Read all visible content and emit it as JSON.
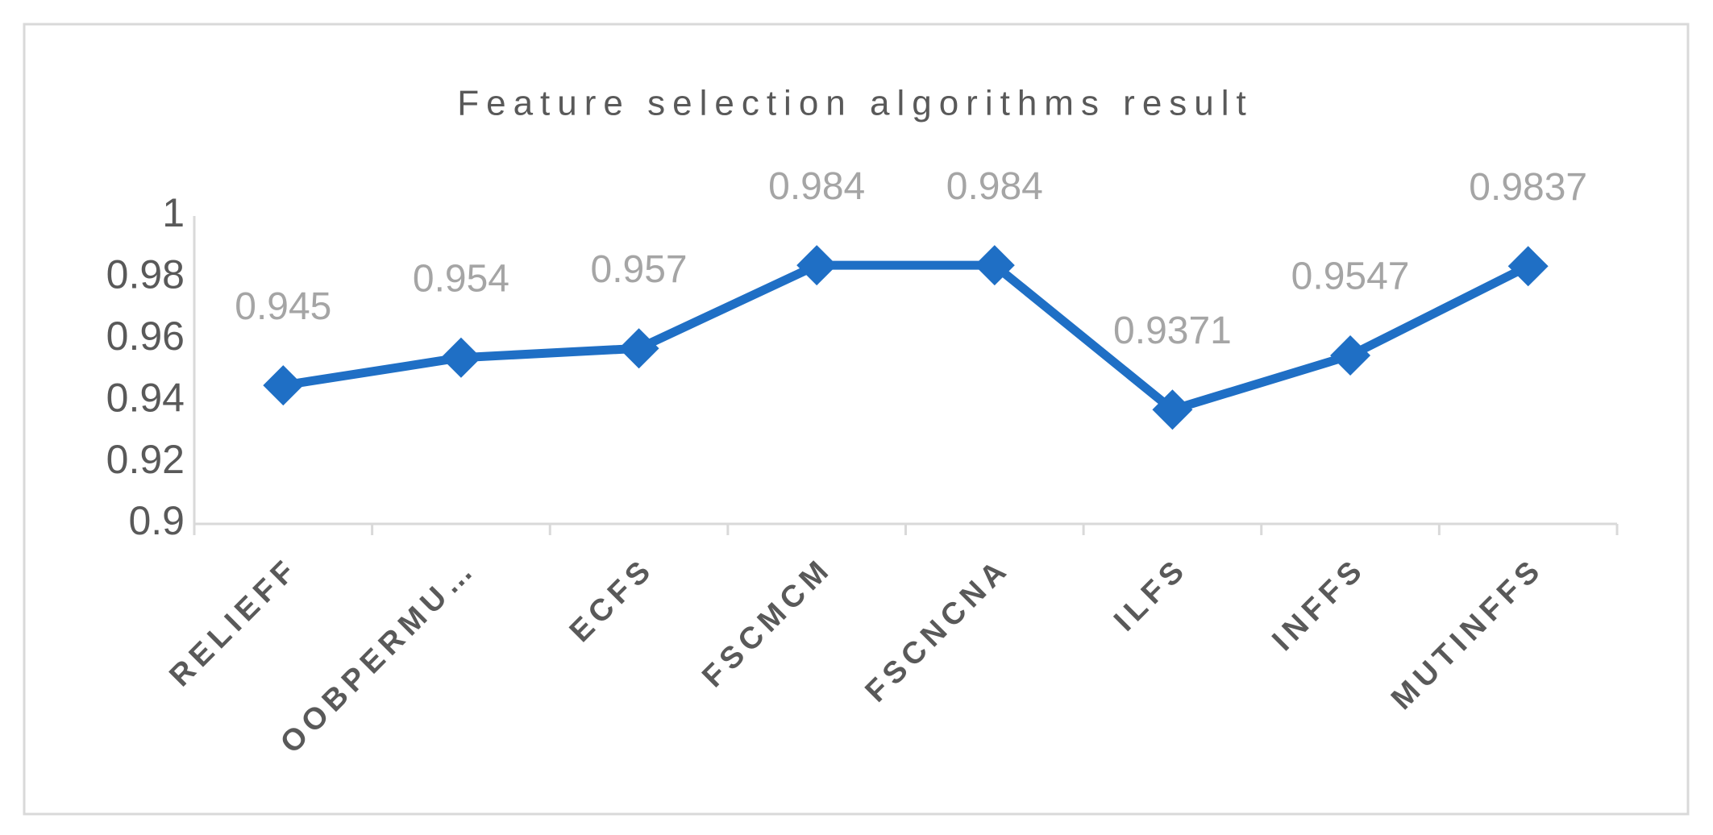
{
  "chart_data": {
    "type": "line",
    "title": "Feature selection algorithms result",
    "categories": [
      "RELIEFF",
      "OOBPERMU…",
      "ECFS",
      "FSCMCM",
      "FSCNCNA",
      "ILFS",
      "INFFS",
      "MUTINFFS"
    ],
    "values": [
      0.945,
      0.954,
      0.957,
      0.984,
      0.984,
      0.9371,
      0.9547,
      0.9837
    ],
    "color": "#1f6fc5",
    "ylim": [
      0.9,
      1
    ],
    "yticks": [
      0.9,
      0.92,
      0.94,
      0.96,
      0.98,
      1
    ],
    "grid": false
  }
}
